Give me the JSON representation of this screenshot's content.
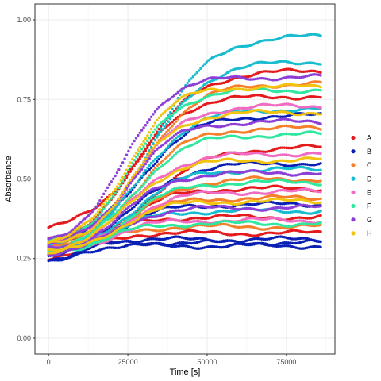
{
  "chart_data": {
    "type": "scatter",
    "xlabel": "Time [s]",
    "ylabel": "Absorbance",
    "xlim": [
      -4300,
      90300
    ],
    "ylim": [
      -0.05,
      1.05
    ],
    "x_ticks": [
      0,
      25000,
      50000,
      75000
    ],
    "x_tick_labels": [
      "0",
      "25000",
      "50000",
      "75000"
    ],
    "y_ticks": [
      0.0,
      0.25,
      0.5,
      0.75,
      1.0
    ],
    "y_tick_labels": [
      "0.00",
      "0.25",
      "0.50",
      "0.75",
      "1.00"
    ],
    "grid": true,
    "legend_position": "right",
    "sample_interval_s": 600,
    "x_range": [
      0,
      86000
    ],
    "series": [
      {
        "name": "A",
        "color": "#e41a1c",
        "curves": [
          {
            "start": 0.33,
            "plateau": 0.84,
            "midpoint": 30000,
            "rate": 9000
          },
          {
            "start": 0.29,
            "plateau": 0.76,
            "midpoint": 26000,
            "rate": 8000
          },
          {
            "start": 0.26,
            "plateau": 0.6,
            "midpoint": 31000,
            "rate": 9500
          },
          {
            "start": 0.27,
            "plateau": 0.47,
            "midpoint": 25000,
            "rate": 7000
          },
          {
            "start": 0.28,
            "plateau": 0.38,
            "midpoint": 20000,
            "rate": 6000
          },
          {
            "start": 0.25,
            "plateau": 0.33,
            "midpoint": 15000,
            "rate": 5000
          }
        ]
      },
      {
        "name": "B",
        "color": "#0a1fb3",
        "curves": [
          {
            "start": 0.23,
            "plateau": 0.29,
            "midpoint": 8000,
            "rate": 4000
          },
          {
            "start": 0.24,
            "plateau": 0.3,
            "midpoint": 9000,
            "rate": 4000
          },
          {
            "start": 0.25,
            "plateau": 0.31,
            "midpoint": 10000,
            "rate": 4500
          },
          {
            "start": 0.27,
            "plateau": 0.55,
            "midpoint": 27000,
            "rate": 8500
          },
          {
            "start": 0.28,
            "plateau": 0.7,
            "midpoint": 28000,
            "rate": 8500
          },
          {
            "start": 0.26,
            "plateau": 0.42,
            "midpoint": 22000,
            "rate": 7000
          }
        ]
      },
      {
        "name": "C",
        "color": "#f57f2a",
        "curves": [
          {
            "start": 0.27,
            "plateau": 0.8,
            "midpoint": 29000,
            "rate": 8500
          },
          {
            "start": 0.28,
            "plateau": 0.66,
            "midpoint": 28000,
            "rate": 8000
          },
          {
            "start": 0.26,
            "plateau": 0.5,
            "midpoint": 27000,
            "rate": 8000
          },
          {
            "start": 0.27,
            "plateau": 0.35,
            "midpoint": 18000,
            "rate": 6000
          },
          {
            "start": 0.27,
            "plateau": 0.44,
            "midpoint": 23000,
            "rate": 7500
          }
        ]
      },
      {
        "name": "D",
        "color": "#17bccf",
        "curves": [
          {
            "start": 0.28,
            "plateau": 0.95,
            "midpoint": 33000,
            "rate": 9000
          },
          {
            "start": 0.27,
            "plateau": 0.87,
            "midpoint": 31000,
            "rate": 9000
          },
          {
            "start": 0.26,
            "plateau": 0.72,
            "midpoint": 28000,
            "rate": 8500
          },
          {
            "start": 0.26,
            "plateau": 0.53,
            "midpoint": 26000,
            "rate": 8000
          },
          {
            "start": 0.27,
            "plateau": 0.4,
            "midpoint": 21000,
            "rate": 7000
          }
        ]
      },
      {
        "name": "E",
        "color": "#f06bc2",
        "curves": [
          {
            "start": 0.28,
            "plateau": 0.73,
            "midpoint": 27000,
            "rate": 8000
          },
          {
            "start": 0.27,
            "plateau": 0.58,
            "midpoint": 26000,
            "rate": 8000
          },
          {
            "start": 0.26,
            "plateau": 0.46,
            "midpoint": 24000,
            "rate": 7500
          },
          {
            "start": 0.26,
            "plateau": 0.37,
            "midpoint": 19000,
            "rate": 6500
          }
        ]
      },
      {
        "name": "F",
        "color": "#2ee8a0",
        "curves": [
          {
            "start": 0.29,
            "plateau": 0.78,
            "midpoint": 26000,
            "rate": 7500
          },
          {
            "start": 0.27,
            "plateau": 0.64,
            "midpoint": 27000,
            "rate": 8000
          },
          {
            "start": 0.26,
            "plateau": 0.49,
            "midpoint": 25000,
            "rate": 7500
          },
          {
            "start": 0.27,
            "plateau": 0.36,
            "midpoint": 19000,
            "rate": 6000
          }
        ]
      },
      {
        "name": "G",
        "color": "#8c3fd6",
        "curves": [
          {
            "start": 0.3,
            "plateau": 0.82,
            "midpoint": 24000,
            "rate": 7000
          },
          {
            "start": 0.28,
            "plateau": 0.68,
            "midpoint": 25000,
            "rate": 7500
          },
          {
            "start": 0.27,
            "plateau": 0.52,
            "midpoint": 24000,
            "rate": 7500
          },
          {
            "start": 0.26,
            "plateau": 0.41,
            "midpoint": 21000,
            "rate": 7000
          }
        ]
      },
      {
        "name": "H",
        "color": "#f2c40f",
        "curves": [
          {
            "start": 0.29,
            "plateau": 0.79,
            "midpoint": 25000,
            "rate": 7000
          },
          {
            "start": 0.28,
            "plateau": 0.71,
            "midpoint": 26000,
            "rate": 7500
          },
          {
            "start": 0.27,
            "plateau": 0.56,
            "midpoint": 25000,
            "rate": 7500
          },
          {
            "start": 0.26,
            "plateau": 0.43,
            "midpoint": 22000,
            "rate": 7000
          }
        ]
      }
    ]
  }
}
